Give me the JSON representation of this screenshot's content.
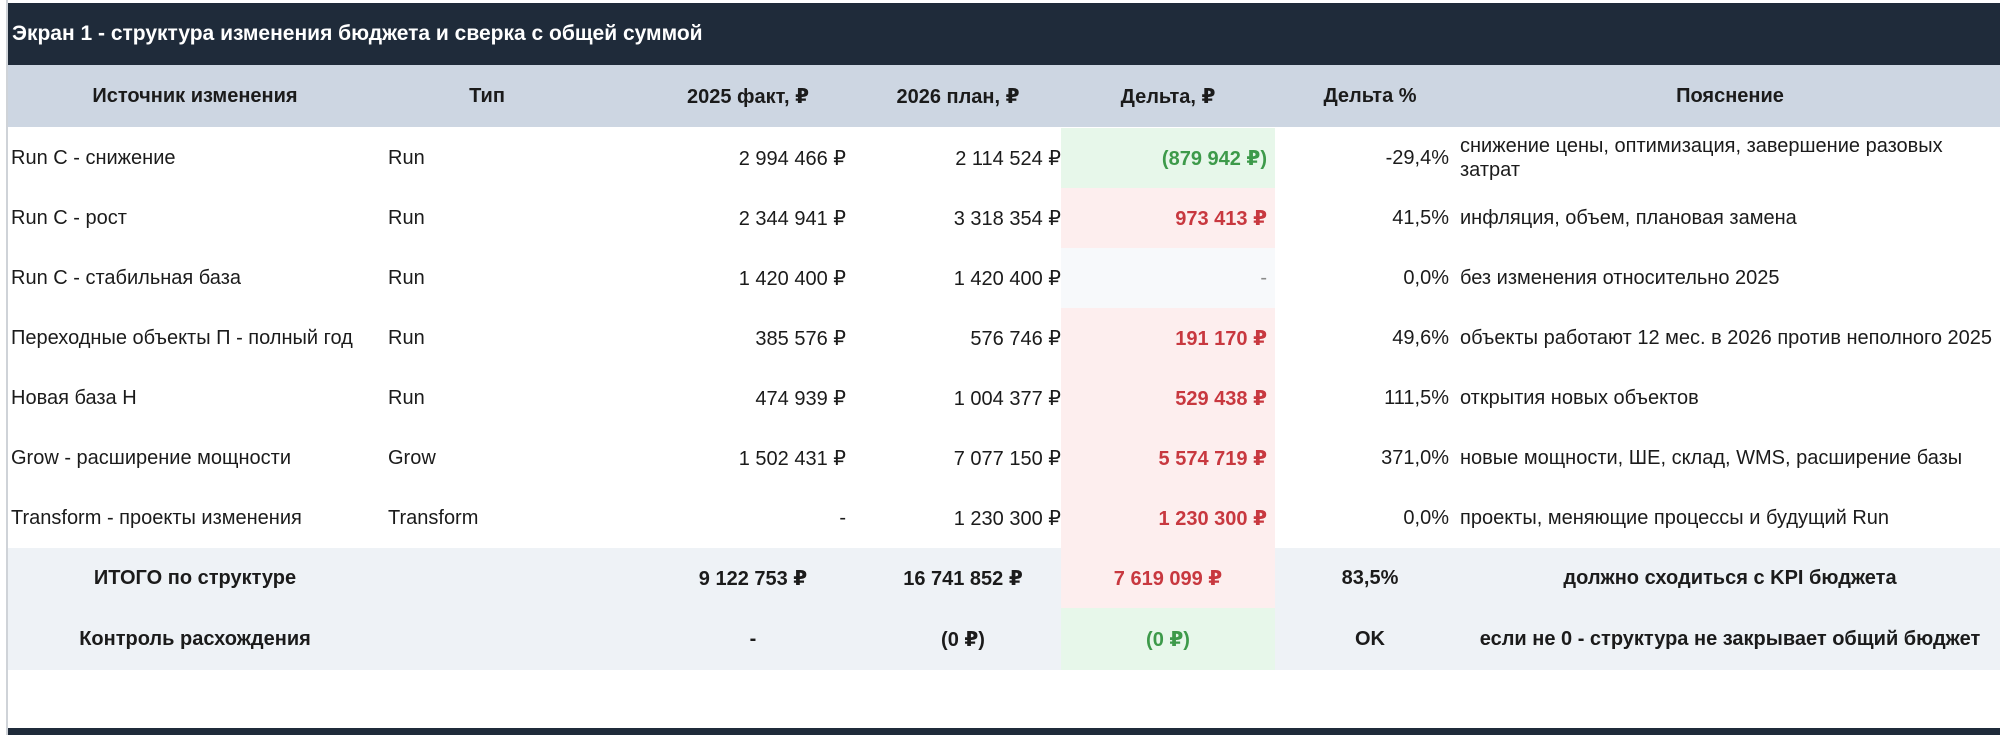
{
  "title": "Экран 1 - структура изменения бюджета и сверка с общей суммой",
  "columns": {
    "source": "Источник изменения",
    "type": "Тип",
    "fact": "2025 факт, ₽",
    "plan": "2026 план, ₽",
    "delta": "Дельта, ₽",
    "pct": "Дельта %",
    "note": "Пояснение"
  },
  "rows": [
    {
      "source": "Run C - снижение",
      "type": "Run",
      "fact": "2 994 466 ₽",
      "plan": "2 114 524 ₽",
      "delta": "(879 942 ₽)",
      "pct": "-29,4%",
      "note": "снижение цены, оптимизация, завершение разовых затрат",
      "delta_status": "decrease"
    },
    {
      "source": "Run C - рост",
      "type": "Run",
      "fact": "2 344 941 ₽",
      "plan": "3 318 354 ₽",
      "delta": "973 413 ₽",
      "pct": "41,5%",
      "note": "инфляция, объем, плановая замена",
      "delta_status": "increase"
    },
    {
      "source": "Run C - стабильная база",
      "type": "Run",
      "fact": "1 420 400 ₽",
      "plan": "1 420 400 ₽",
      "delta": "-",
      "pct": "0,0%",
      "note": "без изменения относительно 2025",
      "delta_status": "none"
    },
    {
      "source": "Переходные объекты П - полный год",
      "type": "Run",
      "fact": "385 576 ₽",
      "plan": "576 746 ₽",
      "delta": "191 170 ₽",
      "pct": "49,6%",
      "note": "объекты работают 12 мес. в 2026 против неполного 2025",
      "delta_status": "increase"
    },
    {
      "source": "Новая база Н",
      "type": "Run",
      "fact": "474 939 ₽",
      "plan": "1 004 377 ₽",
      "delta": "529 438 ₽",
      "pct": "111,5%",
      "note": "открытия новых объектов",
      "delta_status": "increase"
    },
    {
      "source": "Grow - расширение мощности",
      "type": "Grow",
      "fact": "1 502 431 ₽",
      "plan": "7 077 150 ₽",
      "delta": "5 574 719 ₽",
      "pct": "371,0%",
      "note": "новые мощности, ШЕ, склад, WMS, расширение базы",
      "delta_status": "increase"
    },
    {
      "source": "Transform - проекты изменения",
      "type": "Transform",
      "fact": "-",
      "plan": "1 230 300 ₽",
      "delta": "1 230 300 ₽",
      "pct": "0,0%",
      "note": "проекты, меняющие процессы и будущий Run",
      "delta_status": "increase"
    }
  ],
  "total": {
    "label": "ИТОГО по структуре",
    "fact": "9 122 753 ₽",
    "plan": "16 741 852 ₽",
    "delta": "7 619 099 ₽",
    "pct": "83,5%",
    "note": "должно сходиться с KPI бюджета"
  },
  "control": {
    "label": "Контроль расхождения",
    "fact": "-",
    "plan": "(0 ₽)",
    "delta": "(0 ₽)",
    "pct": "OK",
    "note": "если не 0 - структура не закрывает общий бюджет"
  },
  "colors": {
    "header_bg": "#1f2b3a",
    "column_header_bg": "#cdd6e2",
    "increase": "#c8383f",
    "decrease": "#3d9a4a"
  }
}
